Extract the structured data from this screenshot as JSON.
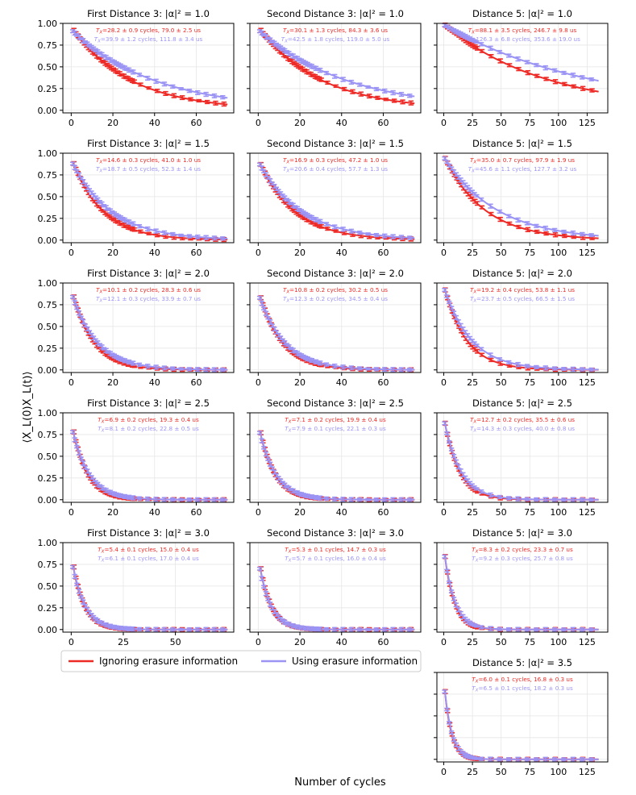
{
  "figure": {
    "ylabel": "⟨X_L(0)X_L(t)⟩",
    "xlabel": "Number of cycles",
    "legend": [
      {
        "label": "Ignoring erasure information",
        "color": "#ee2a26"
      },
      {
        "label": "Using erasure information",
        "color": "#9b94f5"
      }
    ],
    "colors": {
      "ignore": "#ee2a26",
      "use": "#9b94f5"
    }
  },
  "chart_data": [
    {
      "type": "line",
      "title": "First Distance 3: |α|² = 1.0",
      "row": 0,
      "col": 0,
      "xlim": [
        -4,
        78
      ],
      "ylim": [
        -0.03,
        1.0
      ],
      "xticks": [
        0,
        20,
        40,
        60
      ],
      "yticks": [
        0.0,
        0.25,
        0.5,
        0.75,
        1.0
      ],
      "yticklabels": [
        "0.00",
        "0.25",
        "0.50",
        "0.75",
        "1.00"
      ],
      "grid": true,
      "series": [
        {
          "name": "Ignoring erasure information",
          "a": 0.92,
          "tau": 28.2,
          "tmax": 75,
          "annotation": "T_X=28.2 ± 0.9 cycles, 79.0 ± 2.5 us"
        },
        {
          "name": "Using erasure information",
          "a": 0.91,
          "tau": 39.9,
          "tmax": 75,
          "annotation": "T_X=39.9 ± 1.2 cycles, 111.8 ± 3.4 us"
        }
      ]
    },
    {
      "type": "line",
      "title": "Second Distance 3: |α|² = 1.0",
      "row": 0,
      "col": 1,
      "xlim": [
        -4,
        78
      ],
      "ylim": [
        -0.03,
        1.0
      ],
      "xticks": [
        0,
        20,
        40,
        60
      ],
      "yticks": [
        0.0,
        0.25,
        0.5,
        0.75,
        1.0
      ],
      "grid": true,
      "series": [
        {
          "name": "Ignoring erasure information",
          "a": 0.92,
          "tau": 30.1,
          "tmax": 75,
          "annotation": "T_X=30.1 ± 1.3 cycles, 84.3 ± 3.6 us"
        },
        {
          "name": "Using erasure information",
          "a": 0.91,
          "tau": 42.5,
          "tmax": 75,
          "annotation": "T_X=42.5 ± 1.8 cycles, 119.0 ± 5.0 us"
        }
      ]
    },
    {
      "type": "line",
      "title": "Distance 5: |α|² = 1.0",
      "row": 0,
      "col": 2,
      "xlim": [
        -6,
        143
      ],
      "ylim": [
        -0.03,
        1.0
      ],
      "xticks": [
        0,
        25,
        50,
        75,
        100,
        125
      ],
      "yticks": [
        0.0,
        0.25,
        0.5,
        0.75,
        1.0
      ],
      "grid": true,
      "series": [
        {
          "name": "Ignoring erasure information",
          "a": 0.98,
          "tau": 88.1,
          "tmax": 135,
          "annotation": "T_X=88.1 ± 3.5 cycles, 246.7 ± 9.8 us"
        },
        {
          "name": "Using erasure information",
          "a": 0.98,
          "tau": 126.3,
          "tmax": 135,
          "annotation": "T_X=126.3 ± 6.8 cycles, 353.6 ± 19.0 us"
        }
      ]
    },
    {
      "type": "line",
      "title": "First Distance 3: |α|² = 1.5",
      "row": 1,
      "col": 0,
      "xlim": [
        -4,
        78
      ],
      "ylim": [
        -0.03,
        1.0
      ],
      "xticks": [
        0,
        20,
        40,
        60
      ],
      "yticks": [
        0.0,
        0.25,
        0.5,
        0.75,
        1.0
      ],
      "yticklabels": [
        "0.00",
        "0.25",
        "0.50",
        "0.75",
        "1.00"
      ],
      "grid": true,
      "series": [
        {
          "name": "Ignoring erasure information",
          "a": 0.88,
          "tau": 14.6,
          "tmax": 75,
          "annotation": "T_X=14.6 ± 0.3 cycles, 41.0 ± 1.0 us"
        },
        {
          "name": "Using erasure information",
          "a": 0.88,
          "tau": 18.7,
          "tmax": 75,
          "annotation": "T_X=18.7 ± 0.5 cycles, 52.3 ± 1.4 us"
        }
      ]
    },
    {
      "type": "line",
      "title": "Second Distance 3: |α|² = 1.5",
      "row": 1,
      "col": 1,
      "xlim": [
        -4,
        78
      ],
      "ylim": [
        -0.03,
        1.0
      ],
      "xticks": [
        0,
        20,
        40,
        60
      ],
      "yticks": [
        0.0,
        0.25,
        0.5,
        0.75,
        1.0
      ],
      "grid": true,
      "series": [
        {
          "name": "Ignoring erasure information",
          "a": 0.87,
          "tau": 16.9,
          "tmax": 75,
          "annotation": "T_X=16.9 ± 0.3 cycles, 47.2 ± 1.0 us"
        },
        {
          "name": "Using erasure information",
          "a": 0.87,
          "tau": 20.6,
          "tmax": 75,
          "annotation": "T_X=20.6 ± 0.4 cycles, 57.7 ± 1.3 us"
        }
      ]
    },
    {
      "type": "line",
      "title": "Distance 5: |α|² = 1.5",
      "row": 1,
      "col": 2,
      "xlim": [
        -6,
        143
      ],
      "ylim": [
        -0.03,
        1.0
      ],
      "xticks": [
        0,
        25,
        50,
        75,
        100,
        125
      ],
      "yticks": [
        0.0,
        0.25,
        0.5,
        0.75,
        1.0
      ],
      "grid": true,
      "series": [
        {
          "name": "Ignoring erasure information",
          "a": 0.94,
          "tau": 35.0,
          "tmax": 135,
          "annotation": "T_X=35.0 ± 0.7 cycles, 97.9 ± 1.9 us"
        },
        {
          "name": "Using erasure information",
          "a": 0.94,
          "tau": 45.6,
          "tmax": 135,
          "annotation": "T_X=45.6 ± 1.1 cycles, 127.7 ± 3.2 us"
        }
      ]
    },
    {
      "type": "line",
      "title": "First Distance 3: |α|² = 2.0",
      "row": 2,
      "col": 0,
      "xlim": [
        -4,
        78
      ],
      "ylim": [
        -0.03,
        1.0
      ],
      "xticks": [
        0,
        20,
        40,
        60
      ],
      "yticks": [
        0.0,
        0.25,
        0.5,
        0.75,
        1.0
      ],
      "yticklabels": [
        "0.00",
        "0.25",
        "0.50",
        "0.75",
        "1.00"
      ],
      "grid": true,
      "series": [
        {
          "name": "Ignoring erasure information",
          "a": 0.84,
          "tau": 10.1,
          "tmax": 75,
          "annotation": "T_X=10.1 ± 0.2 cycles, 28.3 ± 0.6 us"
        },
        {
          "name": "Using erasure information",
          "a": 0.84,
          "tau": 12.1,
          "tmax": 75,
          "annotation": "T_X=12.1 ± 0.3 cycles, 33.9 ± 0.7 us"
        }
      ]
    },
    {
      "type": "line",
      "title": "Second Distance 3: |α|² = 2.0",
      "row": 2,
      "col": 1,
      "xlim": [
        -4,
        78
      ],
      "ylim": [
        -0.03,
        1.0
      ],
      "xticks": [
        0,
        20,
        40,
        60
      ],
      "yticks": [
        0.0,
        0.25,
        0.5,
        0.75,
        1.0
      ],
      "grid": true,
      "series": [
        {
          "name": "Ignoring erasure information",
          "a": 0.83,
          "tau": 10.8,
          "tmax": 75,
          "annotation": "T_X=10.8 ± 0.2 cycles, 30.2 ± 0.5 us"
        },
        {
          "name": "Using erasure information",
          "a": 0.83,
          "tau": 12.3,
          "tmax": 75,
          "annotation": "T_X=12.3 ± 0.2 cycles, 34.5 ± 0.4 us"
        }
      ]
    },
    {
      "type": "line",
      "title": "Distance 5: |α|² = 2.0",
      "row": 2,
      "col": 2,
      "xlim": [
        -6,
        143
      ],
      "ylim": [
        -0.03,
        1.0
      ],
      "xticks": [
        0,
        25,
        50,
        75,
        100,
        125
      ],
      "yticks": [
        0.0,
        0.25,
        0.5,
        0.75,
        1.0
      ],
      "grid": true,
      "series": [
        {
          "name": "Ignoring erasure information",
          "a": 0.92,
          "tau": 19.2,
          "tmax": 135,
          "annotation": "T_X=19.2 ± 0.4 cycles, 53.8 ± 1.1 us"
        },
        {
          "name": "Using erasure information",
          "a": 0.92,
          "tau": 23.7,
          "tmax": 135,
          "annotation": "T_X=23.7 ± 0.5 cycles, 66.5 ± 1.5 us"
        }
      ]
    },
    {
      "type": "line",
      "title": "First Distance 3: |α|² = 2.5",
      "row": 3,
      "col": 0,
      "xlim": [
        -4,
        78
      ],
      "ylim": [
        -0.03,
        1.0
      ],
      "xticks": [
        0,
        20,
        40,
        60
      ],
      "yticks": [
        0.0,
        0.25,
        0.5,
        0.75,
        1.0
      ],
      "yticklabels": [
        "0.00",
        "0.25",
        "0.50",
        "0.75",
        "1.00"
      ],
      "grid": true,
      "series": [
        {
          "name": "Ignoring erasure information",
          "a": 0.78,
          "tau": 6.9,
          "tmax": 75,
          "annotation": "T_X=6.9 ± 0.2 cycles, 19.3 ± 0.4 us"
        },
        {
          "name": "Using erasure information",
          "a": 0.78,
          "tau": 8.1,
          "tmax": 75,
          "annotation": "T_X=8.1 ± 0.2 cycles, 22.8 ± 0.5 us"
        }
      ]
    },
    {
      "type": "line",
      "title": "Second Distance 3: |α|² = 2.5",
      "row": 3,
      "col": 1,
      "xlim": [
        -4,
        78
      ],
      "ylim": [
        -0.03,
        1.0
      ],
      "xticks": [
        0,
        20,
        40,
        60
      ],
      "yticks": [
        0.0,
        0.25,
        0.5,
        0.75,
        1.0
      ],
      "grid": true,
      "series": [
        {
          "name": "Ignoring erasure information",
          "a": 0.77,
          "tau": 7.1,
          "tmax": 75,
          "annotation": "T_X=7.1 ± 0.2 cycles, 19.9 ± 0.4 us"
        },
        {
          "name": "Using erasure information",
          "a": 0.77,
          "tau": 7.9,
          "tmax": 75,
          "annotation": "T_X=7.9 ± 0.1 cycles, 22.1 ± 0.3 us"
        }
      ]
    },
    {
      "type": "line",
      "title": "Distance 5: |α|² = 2.5",
      "row": 3,
      "col": 2,
      "xlim": [
        -6,
        143
      ],
      "ylim": [
        -0.03,
        1.0
      ],
      "xticks": [
        0,
        25,
        50,
        75,
        100,
        125
      ],
      "yticks": [
        0.0,
        0.25,
        0.5,
        0.75,
        1.0
      ],
      "grid": true,
      "series": [
        {
          "name": "Ignoring erasure information",
          "a": 0.88,
          "tau": 12.7,
          "tmax": 135,
          "annotation": "T_X=12.7 ± 0.2 cycles, 35.5 ± 0.6 us"
        },
        {
          "name": "Using erasure information",
          "a": 0.88,
          "tau": 14.3,
          "tmax": 135,
          "annotation": "T_X=14.3 ± 0.3 cycles, 40.0 ± 0.8 us"
        }
      ]
    },
    {
      "type": "line",
      "title": "First Distance 3: |α|² = 3.0",
      "row": 4,
      "col": 0,
      "xlim": [
        -4,
        78
      ],
      "ylim": [
        -0.03,
        1.0
      ],
      "xticks": [
        0,
        25,
        50
      ],
      "yticks": [
        0.0,
        0.25,
        0.5,
        0.75,
        1.0
      ],
      "yticklabels": [
        "0.00",
        "0.25",
        "0.50",
        "0.75",
        "1.00"
      ],
      "grid": true,
      "series": [
        {
          "name": "Ignoring erasure information",
          "a": 0.72,
          "tau": 5.4,
          "tmax": 75,
          "annotation": "T_X=5.4 ± 0.1 cycles, 15.0 ± 0.4 us"
        },
        {
          "name": "Using erasure information",
          "a": 0.72,
          "tau": 6.1,
          "tmax": 75,
          "annotation": "T_X=6.1 ± 0.1 cycles, 17.0 ± 0.4 us"
        }
      ]
    },
    {
      "type": "line",
      "title": "Second Distance 3: |α|² = 3.0",
      "row": 4,
      "col": 1,
      "xlim": [
        -4,
        78
      ],
      "ylim": [
        -0.03,
        1.0
      ],
      "xticks": [
        0,
        20,
        40,
        60
      ],
      "yticks": [
        0.0,
        0.25,
        0.5,
        0.75,
        1.0
      ],
      "grid": true,
      "series": [
        {
          "name": "Ignoring erasure information",
          "a": 0.7,
          "tau": 5.3,
          "tmax": 75,
          "annotation": "T_X=5.3 ± 0.1 cycles, 14.7 ± 0.3 us"
        },
        {
          "name": "Using erasure information",
          "a": 0.7,
          "tau": 5.7,
          "tmax": 75,
          "annotation": "T_X=5.7 ± 0.1 cycles, 16.0 ± 0.4 us"
        }
      ]
    },
    {
      "type": "line",
      "title": "Distance 5: |α|² = 3.0",
      "row": 4,
      "col": 2,
      "xlim": [
        -6,
        143
      ],
      "ylim": [
        -0.03,
        1.0
      ],
      "xticks": [
        0,
        25,
        50,
        75,
        100,
        125
      ],
      "yticks": [
        0.0,
        0.25,
        0.5,
        0.75,
        1.0
      ],
      "grid": true,
      "series": [
        {
          "name": "Ignoring erasure information",
          "a": 0.84,
          "tau": 8.3,
          "tmax": 135,
          "annotation": "T_X=8.3 ± 0.2 cycles, 23.3 ± 0.7 us"
        },
        {
          "name": "Using erasure information",
          "a": 0.84,
          "tau": 9.2,
          "tmax": 135,
          "annotation": "T_X=9.2 ± 0.3 cycles, 25.7 ± 0.8 us"
        }
      ]
    },
    {
      "type": "line",
      "title": "Distance 5: |α|² = 3.5",
      "row": 5,
      "col": 2,
      "xlim": [
        -6,
        143
      ],
      "ylim": [
        -0.03,
        1.0
      ],
      "xticks": [
        0,
        25,
        50,
        75,
        100,
        125
      ],
      "yticks": [
        0.0,
        0.25,
        0.5,
        0.75,
        1.0
      ],
      "grid": true,
      "series": [
        {
          "name": "Ignoring erasure information",
          "a": 0.78,
          "tau": 6.0,
          "tmax": 135,
          "annotation": "T_X=6.0 ± 0.1 cycles, 16.8 ± 0.3 us"
        },
        {
          "name": "Using erasure information",
          "a": 0.78,
          "tau": 6.5,
          "tmax": 135,
          "annotation": "T_X=6.5 ± 0.1 cycles, 18.2 ± 0.3 us"
        }
      ]
    }
  ]
}
